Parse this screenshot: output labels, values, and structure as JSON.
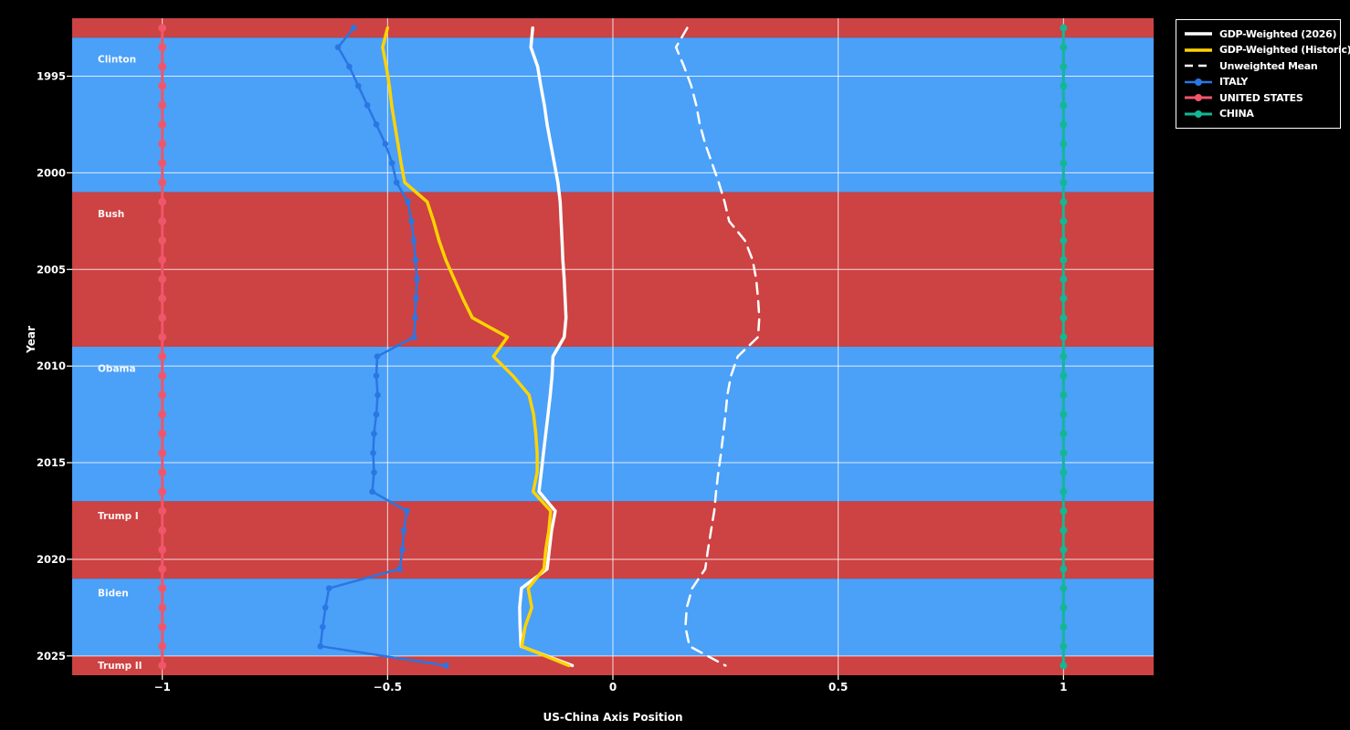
{
  "figure": {
    "background": "#000000"
  },
  "chart_data": {
    "type": "line",
    "title": "",
    "xlabel": "US-China Axis Position",
    "ylabel": "Year",
    "grid": true,
    "legend_position": "upper-right-outside",
    "xlim": [
      -1.2,
      1.2
    ],
    "ylim_years": [
      1992,
      2026
    ],
    "y_axis_inverted": true,
    "x_ticks": [
      -1,
      -0.5,
      0,
      0.5,
      1
    ],
    "x_tick_labels": [
      "−1",
      "−0.5",
      "0",
      "0.5",
      "1"
    ],
    "y_ticks": [
      1995,
      2000,
      2005,
      2010,
      2015,
      2020,
      2025
    ],
    "grid_color": "rgba(255,255,255,0.8)",
    "years": [
      1992.5,
      1993.5,
      1994.5,
      1995.5,
      1996.5,
      1997.5,
      1998.5,
      1999.5,
      2000.5,
      2001.5,
      2002.5,
      2003.5,
      2004.5,
      2005.5,
      2006.5,
      2007.5,
      2008.5,
      2009.5,
      2010.5,
      2011.5,
      2012.5,
      2013.5,
      2014.5,
      2015.5,
      2016.5,
      2017.5,
      2018.5,
      2019.5,
      2020.5,
      2021.5,
      2022.5,
      2023.5,
      2024.5,
      2025.5
    ],
    "series": [
      {
        "name": "GDP-Weighted (2026)",
        "color": "#ffffff",
        "width": 3.5,
        "dash": null,
        "marker": null,
        "values": [
          -0.178,
          -0.182,
          -0.167,
          -0.16,
          -0.152,
          -0.146,
          -0.138,
          -0.13,
          -0.122,
          -0.117,
          -0.115,
          -0.113,
          -0.111,
          -0.108,
          -0.106,
          -0.104,
          -0.108,
          -0.133,
          -0.135,
          -0.139,
          -0.144,
          -0.149,
          -0.154,
          -0.159,
          -0.164,
          -0.128,
          -0.136,
          -0.141,
          -0.146,
          -0.203,
          -0.207,
          -0.206,
          -0.204,
          -0.09
        ]
      },
      {
        "name": "GDP-Weighted (Historic)",
        "color": "#ffd301",
        "width": 3.5,
        "dash": null,
        "marker": null,
        "values": [
          -0.5,
          -0.511,
          -0.503,
          -0.496,
          -0.491,
          -0.484,
          -0.477,
          -0.47,
          -0.462,
          -0.412,
          -0.398,
          -0.386,
          -0.371,
          -0.352,
          -0.333,
          -0.312,
          -0.234,
          -0.265,
          -0.222,
          -0.186,
          -0.176,
          -0.171,
          -0.168,
          -0.168,
          -0.177,
          -0.138,
          -0.142,
          -0.149,
          -0.153,
          -0.188,
          -0.18,
          -0.195,
          -0.202,
          -0.098
        ]
      },
      {
        "name": "Unweighted Mean",
        "color": "#ffffff",
        "width": 2.5,
        "dash": [
          12,
          8
        ],
        "marker": null,
        "values": [
          0.165,
          0.14,
          0.158,
          0.174,
          0.185,
          0.193,
          0.205,
          0.22,
          0.235,
          0.248,
          0.258,
          0.293,
          0.31,
          0.318,
          0.322,
          0.325,
          0.322,
          0.277,
          0.262,
          0.254,
          0.25,
          0.245,
          0.24,
          0.234,
          0.229,
          0.225,
          0.218,
          0.211,
          0.205,
          0.176,
          0.164,
          0.161,
          0.17,
          0.25
        ]
      },
      {
        "name": "ITALY",
        "color": "#2a76e2",
        "width": 2.5,
        "dash": null,
        "marker": 3.3,
        "values": [
          -0.575,
          -0.61,
          -0.585,
          -0.565,
          -0.545,
          -0.525,
          -0.505,
          -0.49,
          -0.48,
          -0.455,
          -0.447,
          -0.442,
          -0.438,
          -0.435,
          -0.437,
          -0.439,
          -0.441,
          -0.523,
          -0.525,
          -0.522,
          -0.525,
          -0.53,
          -0.532,
          -0.53,
          -0.534,
          -0.457,
          -0.464,
          -0.467,
          -0.473,
          -0.63,
          -0.638,
          -0.644,
          -0.649,
          -0.37
        ]
      },
      {
        "name": "UNITED STATES",
        "color": "#f0566a",
        "width": 3,
        "dash": null,
        "marker": 4.4,
        "values": [
          -1,
          -1,
          -1,
          -1,
          -1,
          -1,
          -1,
          -1,
          -1,
          -1,
          -1,
          -1,
          -1,
          -1,
          -1,
          -1,
          -1,
          -1,
          -1,
          -1,
          -1,
          -1,
          -1,
          -1,
          -1,
          -1,
          -1,
          -1,
          -1,
          -1,
          -1,
          -1,
          -1,
          -1
        ]
      },
      {
        "name": "CHINA",
        "color": "#13b795",
        "width": 3,
        "dash": null,
        "marker": 4,
        "values": [
          1,
          1,
          1,
          1,
          1,
          1,
          1,
          1,
          1,
          1,
          1,
          1,
          1,
          1,
          1,
          1,
          1,
          1,
          1,
          1,
          1,
          1,
          1,
          1,
          1,
          1,
          1,
          1,
          1,
          1,
          1,
          1,
          1,
          1
        ]
      }
    ],
    "bands": [
      {
        "label": "",
        "party_color": "#cd4242",
        "start": 1992,
        "end": 1993
      },
      {
        "label": "Clinton",
        "party_color": "#4ba0f8",
        "start": 1993,
        "end": 2001
      },
      {
        "label": "Bush",
        "party_color": "#cd4242",
        "start": 2001,
        "end": 2009
      },
      {
        "label": "Obama",
        "party_color": "#4ba0f8",
        "start": 2009,
        "end": 2017
      },
      {
        "label": "Trump I",
        "party_color": "#cd4242",
        "start": 2017,
        "end": 2021
      },
      {
        "label": "Biden",
        "party_color": "#4ba0f8",
        "start": 2021,
        "end": 2025
      },
      {
        "label": "Trump II",
        "party_color": "#cd4242",
        "start": 2025,
        "end": 2026
      }
    ],
    "legend_entries": [
      "GDP-Weighted (2026)",
      "GDP-Weighted (Historic)",
      "Unweighted Mean",
      "ITALY",
      "UNITED STATES",
      "CHINA"
    ]
  }
}
